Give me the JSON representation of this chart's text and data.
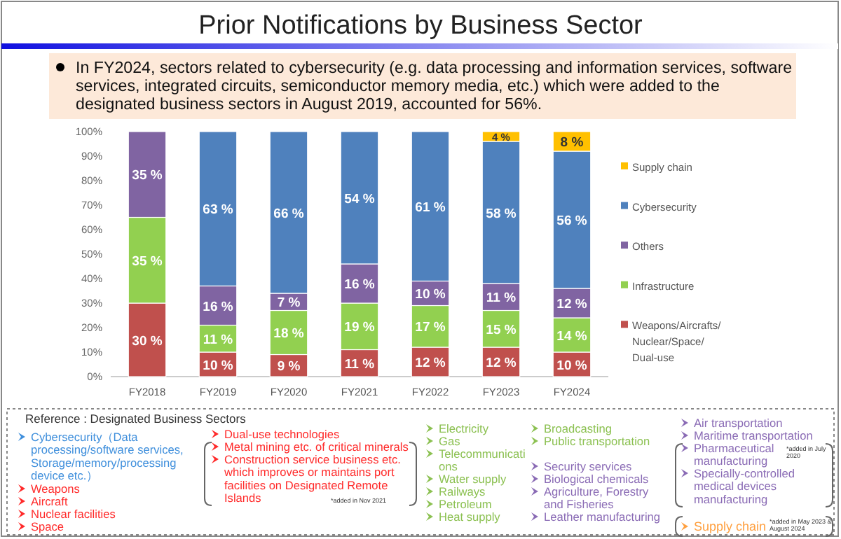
{
  "chart_data": {
    "type": "bar",
    "stacked": true,
    "title": "Prior Notifications by Business Sector",
    "subtitle": "In FY2024, sectors related to cybersecurity (e.g. data processing and information services, software services, integrated circuits, semiconductor memory media, etc.) which were added to the designated business sectors in August 2019, accounted for 56%.",
    "categories": [
      "FY2018",
      "FY2019",
      "FY2020",
      "FY2021",
      "FY2022",
      "FY2023",
      "FY2024"
    ],
    "series": [
      {
        "name": "Weapons/Aircrafts/Nuclear/Space/Dual-use",
        "color": "#c0504d",
        "values": [
          30,
          10,
          9,
          11,
          12,
          12,
          10
        ],
        "value_labels": [
          "30 %",
          "10 %",
          "9 %",
          "11 %",
          "12 %",
          "12 %",
          "10 %"
        ]
      },
      {
        "name": "Infrastructure",
        "color": "#92d050",
        "values": [
          35,
          11,
          18,
          19,
          17,
          15,
          14
        ],
        "value_labels": [
          "35 %",
          "11 %",
          "18 %",
          "19 %",
          "17 %",
          "15 %",
          "14 %"
        ]
      },
      {
        "name": "Others",
        "color": "#8064a2",
        "values": [
          35,
          16,
          7,
          16,
          10,
          11,
          12
        ],
        "value_labels": [
          "35 %",
          "16 %",
          "7 %",
          "16 %",
          "10 %",
          "11 %",
          "12 %"
        ]
      },
      {
        "name": "Cybersecurity",
        "color": "#4f81bd",
        "values": [
          null,
          63,
          66,
          54,
          61,
          58,
          56
        ],
        "value_labels": [
          null,
          "63 %",
          "66 %",
          "54 %",
          "61 %",
          "58 %",
          "56 %"
        ]
      },
      {
        "name": "Supply chain",
        "color": "#ffc000",
        "values": [
          null,
          null,
          null,
          null,
          null,
          4,
          8
        ],
        "value_labels": [
          null,
          null,
          null,
          null,
          null,
          "4 %",
          "8 %"
        ]
      }
    ],
    "ylim": [
      0,
      100
    ],
    "yticks": [
      {
        "value": 0,
        "label": "0%"
      },
      {
        "value": 10,
        "label": "10%"
      },
      {
        "value": 20,
        "label": "20%"
      },
      {
        "value": 30,
        "label": "30%"
      },
      {
        "value": 40,
        "label": "40%"
      },
      {
        "value": 50,
        "label": "50%"
      },
      {
        "value": 60,
        "label": "60%"
      },
      {
        "value": 70,
        "label": "70%"
      },
      {
        "value": 80,
        "label": "80%"
      },
      {
        "value": 90,
        "label": "90%"
      },
      {
        "value": 100,
        "label": "100%"
      }
    ],
    "grid": false,
    "legend": "right",
    "annotations": [
      "Reference : Designated Business Sectors",
      "Cybersecurity（Data processing/software services, Storage/memory/processing device etc.）",
      "Weapons",
      "Aircraft",
      "Nuclear facilities",
      "Space",
      "Dual-use technologies",
      "Metal mining etc. of critical minerals",
      "Construction service business etc. which improves or maintains port facilities on Designated Remote Islands",
      "*added in Nov 2021",
      "Electricity",
      "Gas",
      "Telecommunications",
      "Water supply",
      "Railways",
      "Petroleum",
      "Heat supply",
      "Broadcasting",
      "Public transportation",
      "Security services",
      "Biological chemicals",
      "Agriculture, Forestry and Fisheries",
      "Leather manufacturing",
      "Air transportation",
      "Maritime transportation",
      "Pharmaceutical manufacturing",
      "Specially-controlled medical devices manufacturing",
      "*added in July 2020",
      "Supply chain",
      "*added in May 2023 & August 2024"
    ]
  }
}
